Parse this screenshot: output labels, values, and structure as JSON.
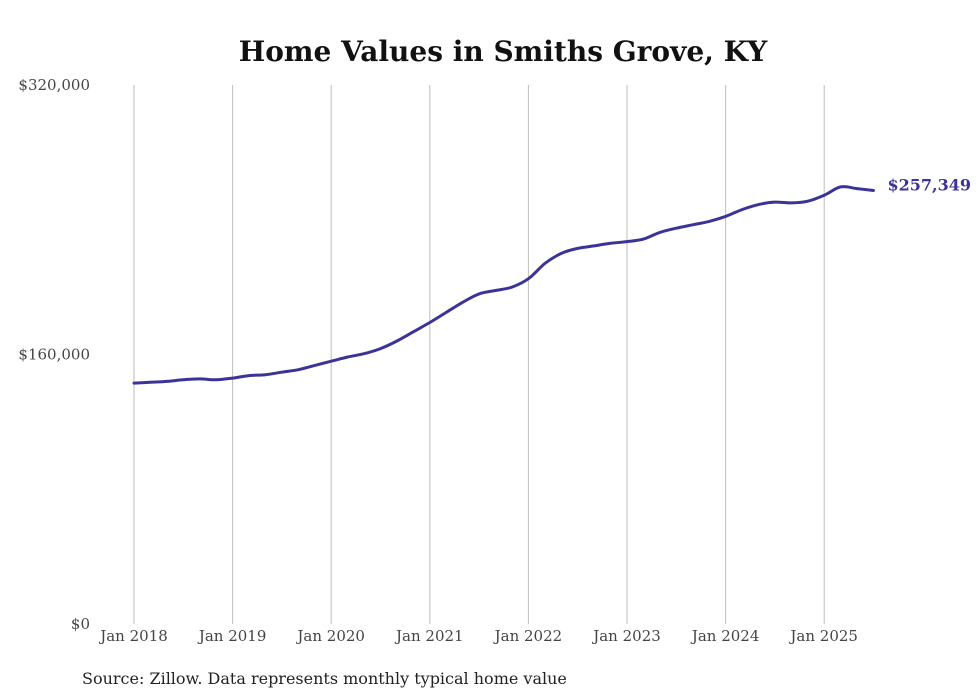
{
  "chart_data": {
    "type": "line",
    "title": "Home Values in Smiths Grove, KY",
    "xlabel": "",
    "ylabel": "",
    "ylim": [
      0,
      320000
    ],
    "y_ticks": [
      "$0",
      "$160,000",
      "$320,000"
    ],
    "y_tick_values": [
      0,
      160000,
      320000
    ],
    "x_ticks": [
      "Jan 2018",
      "Jan 2019",
      "Jan 2020",
      "Jan 2021",
      "Jan 2022",
      "Jan 2023",
      "Jan 2024",
      "Jan 2025"
    ],
    "grid": "vertical",
    "line_color": "#3b3496",
    "end_label": "$257,349",
    "series": [
      {
        "x": [
          "2018-01",
          "2018-03",
          "2018-05",
          "2018-07",
          "2018-09",
          "2018-11",
          "2019-01",
          "2019-03",
          "2019-05",
          "2019-07",
          "2019-09",
          "2019-11",
          "2020-01",
          "2020-03",
          "2020-05",
          "2020-07",
          "2020-09",
          "2020-11",
          "2021-01",
          "2021-03",
          "2021-05",
          "2021-07",
          "2021-09",
          "2021-11",
          "2022-01",
          "2022-03",
          "2022-05",
          "2022-07",
          "2022-09",
          "2022-11",
          "2023-01",
          "2023-03",
          "2023-05",
          "2023-07",
          "2023-09",
          "2023-11",
          "2024-01",
          "2024-03",
          "2024-05",
          "2024-07",
          "2024-09",
          "2024-11",
          "2025-01",
          "2025-03",
          "2025-05",
          "2025-07"
        ],
        "values": [
          143000,
          143500,
          144000,
          145000,
          145500,
          145000,
          146000,
          147500,
          148000,
          149500,
          151000,
          153500,
          156000,
          158500,
          160500,
          163500,
          168000,
          173500,
          179000,
          185000,
          191000,
          196000,
          198000,
          200000,
          205000,
          214000,
          220000,
          223000,
          224500,
          226000,
          227000,
          228500,
          232500,
          235000,
          237000,
          239000,
          242000,
          246000,
          249000,
          250500,
          250000,
          251000,
          254500,
          259500,
          258500,
          257349
        ]
      }
    ]
  },
  "source_note": "Source: Zillow. Data represents monthly typical home value"
}
